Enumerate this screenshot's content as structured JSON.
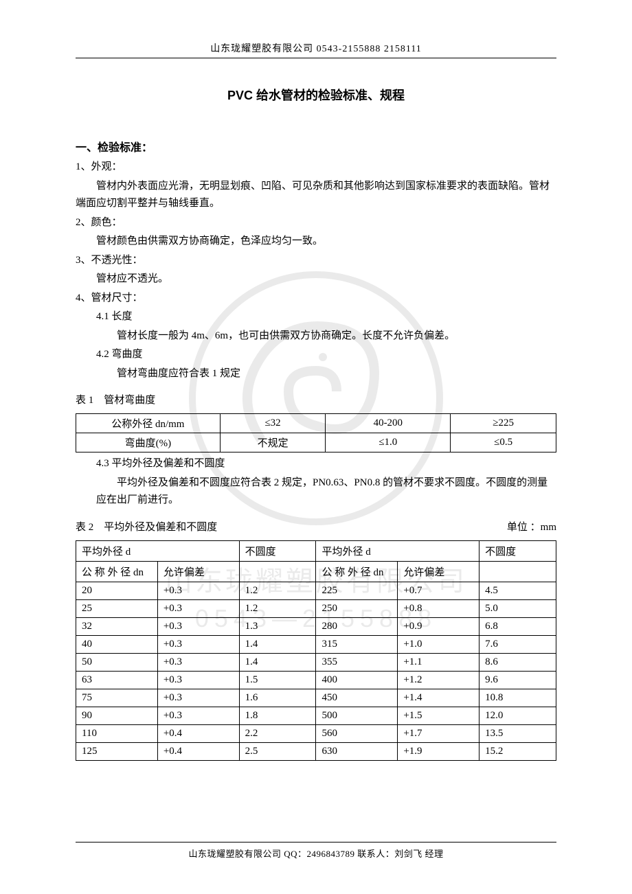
{
  "header": {
    "text": "山东珑耀塑胶有限公司   0543-2155888   2158111"
  },
  "title": "PVC 给水管材的检验标准、规程",
  "section1": {
    "heading": "一、检验标准：",
    "item1_label": "1、外观：",
    "item1_body": "管材内外表面应光滑，无明显划痕、凹陷、可见杂质和其他影响达到国家标准要求的表面缺陷。管材端面应切割平整并与轴线垂直。",
    "item2_label": "2、颜色：",
    "item2_body": "管材颜色由供需双方协商确定，色泽应均匀一致。",
    "item3_label": "3、不透光性：",
    "item3_body": "管材应不透光。",
    "item4_label": "4、管材尺寸：",
    "item4_1_label": "4.1 长度",
    "item4_1_body": "管材长度一般为 4m、6m，也可由供需双方协商确定。长度不允许负偏差。",
    "item4_2_label": "4.2 弯曲度",
    "item4_2_body": "管材弯曲度应符合表 1 规定",
    "item4_3_label": "4.3 平均外径及偏差和不圆度",
    "item4_3_body": "平均外径及偏差和不圆度应符合表 2 规定，PN0.63、PN0.8 的管材不要求不圆度。不圆度的测量应在出厂前进行。"
  },
  "table1": {
    "caption": "表 1　管材弯曲度",
    "rows": [
      [
        "公称外径 dn/mm",
        "≤32",
        "40-200",
        "≥225"
      ],
      [
        "弯曲度(%)",
        "不规定",
        "≤1.0",
        "≤0.5"
      ]
    ],
    "col_widths": [
      "30%",
      "22%",
      "26%",
      "22%"
    ]
  },
  "table2": {
    "caption_left": "表 2　平均外径及偏差和不圆度",
    "caption_right": "单位 ：mm",
    "header_row1": [
      "平均外径 d",
      "",
      "不圆度",
      "平均外径 d",
      "",
      "不圆度"
    ],
    "header_row2": [
      "公 称 外 径 dn",
      "允许偏差",
      "",
      "公 称 外 径 dn",
      "允许偏差",
      ""
    ],
    "rows": [
      [
        "20",
        "+0.3",
        "1.2",
        "225",
        "+0.7",
        "4.5"
      ],
      [
        "25",
        "+0.3",
        "1.2",
        "250",
        "+0.8",
        "5.0"
      ],
      [
        "32",
        "+0.3",
        "1.3",
        "280",
        "+0.9",
        "6.8"
      ],
      [
        "40",
        "+0.3",
        "1.4",
        "315",
        "+1.0",
        "7.6"
      ],
      [
        "50",
        "+0.3",
        "1.4",
        "355",
        "+1.1",
        "8.6"
      ],
      [
        "63",
        "+0.3",
        "1.5",
        "400",
        "+1.2",
        "9.6"
      ],
      [
        "75",
        "+0.3",
        "1.6",
        "450",
        "+1.4",
        "10.8"
      ],
      [
        "90",
        "+0.3",
        "1.8",
        "500",
        "+1.5",
        "12.0"
      ],
      [
        "110",
        "+0.4",
        "2.2",
        "560",
        "+1.7",
        "13.5"
      ],
      [
        "125",
        "+0.4",
        "2.5",
        "630",
        "+1.9",
        "15.2"
      ]
    ],
    "col_widths": [
      "17%",
      "17%",
      "16%",
      "17%",
      "17%",
      "16%"
    ]
  },
  "footer": {
    "text": "山东珑耀塑胶有限公司   QQ：2496843789   联系人：刘剑飞   经理"
  },
  "watermark": {
    "company": "山东珑耀塑胶有限公司",
    "phone": "0543—2155888"
  }
}
